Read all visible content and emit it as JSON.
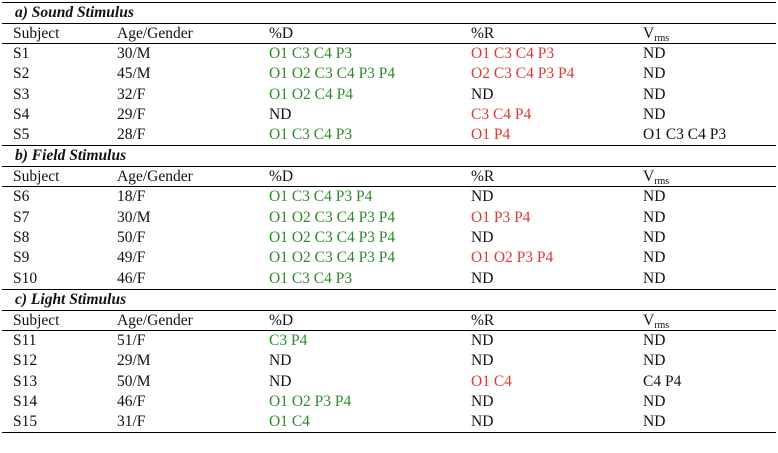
{
  "columns": {
    "subject": "Subject",
    "age_gender": "Age/Gender",
    "pct_d": "%D",
    "pct_r": "%R",
    "vrms_main": "V",
    "vrms_sub": "rms"
  },
  "colors": {
    "pct_d": "#2e8b2e",
    "pct_r": "#e03a32",
    "nd": "#111111"
  },
  "sections": [
    {
      "title": "a) Sound Stimulus",
      "rows": [
        {
          "subject": "S1",
          "age_gender": "30/M",
          "d": "O1 C3 C4 P3",
          "r": "O1 C3 C4 P3",
          "v": "ND"
        },
        {
          "subject": "S2",
          "age_gender": "45/M",
          "d": "O1 O2 C3 C4 P3 P4",
          "r": "O2 C3 C4 P3 P4",
          "v": "ND"
        },
        {
          "subject": "S3",
          "age_gender": "32/F",
          "d": "O1 O2 C4 P4",
          "r": "ND",
          "v": "ND"
        },
        {
          "subject": "S4",
          "age_gender": "29/F",
          "d": "ND",
          "r": "C3 C4 P4",
          "v": "ND"
        },
        {
          "subject": "S5",
          "age_gender": "28/F",
          "d": "O1 C3 C4 P3",
          "r": "O1 P4",
          "v": "O1 C3 C4 P3"
        }
      ]
    },
    {
      "title": "b) Field Stimulus",
      "rows": [
        {
          "subject": "S6",
          "age_gender": "18/F",
          "d": "O1 C3 C4 P3 P4",
          "r": "ND",
          "v": "ND"
        },
        {
          "subject": "S7",
          "age_gender": "30/M",
          "d": "O1 O2 C3 C4 P3 P4",
          "r": "O1 P3 P4",
          "v": "ND"
        },
        {
          "subject": "S8",
          "age_gender": "50/F",
          "d": "O1 O2 C3 C4 P3 P4",
          "r": "ND",
          "v": "ND"
        },
        {
          "subject": "S9",
          "age_gender": "49/F",
          "d": "O1 O2 C3 C4 P3 P4",
          "r": "O1 O2 P3 P4",
          "v": "ND"
        },
        {
          "subject": "S10",
          "age_gender": "46/F",
          "d": "O1 C3 C4 P3",
          "r": "ND",
          "v": "ND"
        }
      ]
    },
    {
      "title": "c) Light Stimulus",
      "rows": [
        {
          "subject": "S11",
          "age_gender": "51/F",
          "d": "C3 P4",
          "r": "ND",
          "v": "ND"
        },
        {
          "subject": "S12",
          "age_gender": "29/M",
          "d": "ND",
          "r": "ND",
          "v": "ND"
        },
        {
          "subject": "S13",
          "age_gender": "50/M",
          "d": "ND",
          "r": "O1 C4",
          "v": "C4 P4"
        },
        {
          "subject": "S14",
          "age_gender": "46/F",
          "d": "O1 O2 P3 P4",
          "r": "ND",
          "v": "ND"
        },
        {
          "subject": "S15",
          "age_gender": "31/F",
          "d": "O1 C4",
          "r": "ND",
          "v": "ND"
        }
      ]
    }
  ]
}
